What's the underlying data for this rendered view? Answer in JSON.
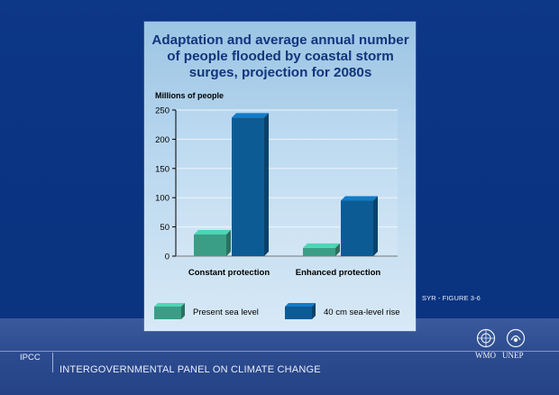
{
  "slide": {
    "source_label": "SYR - FIGURE 3-6",
    "org_abbr": "IPCC",
    "org_name": "INTERGOVERNMENTAL PANEL ON CLIMATE CHANGE",
    "logos": [
      {
        "name": "wmo-logo",
        "caption": "WMO"
      },
      {
        "name": "unep-logo",
        "caption": "UNEP"
      }
    ]
  },
  "chart_data": {
    "type": "bar",
    "title": "Adaptation and average annual number of people flooded by coastal storm surges, projection for 2080s",
    "title_lines": [
      "Adaptation and average annual number",
      "of people flooded by coastal storm",
      "surges, projection for 2080s"
    ],
    "ylabel": "Millions of people",
    "xlabel": "",
    "ylim": [
      0,
      250
    ],
    "yticks": [
      0,
      50,
      100,
      150,
      200,
      250
    ],
    "categories": [
      "Constant protection",
      "Enhanced protection"
    ],
    "series": [
      {
        "name": "Present sea level",
        "values": [
          37,
          14
        ],
        "color": "#3a9e86"
      },
      {
        "name": "40 cm sea-level rise",
        "values": [
          237,
          95
        ],
        "color": "#0d5b95"
      }
    ],
    "legend_position": "bottom"
  },
  "colors": {
    "background": "#0a3380",
    "panel": "#b7d6ee",
    "title": "#12357c"
  }
}
